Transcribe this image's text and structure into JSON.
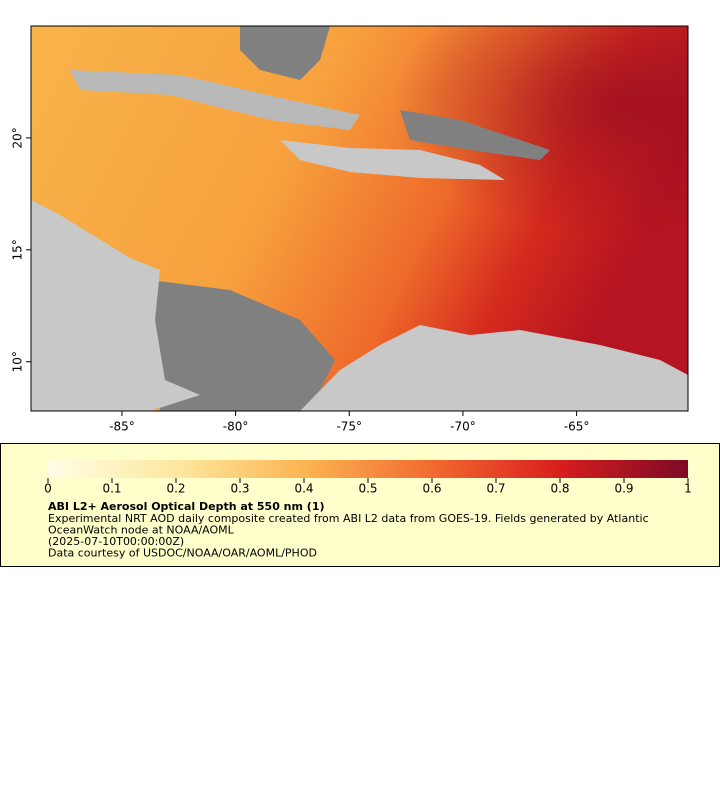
{
  "map": {
    "xlim": [
      -89,
      -60.1
    ],
    "ylim": [
      7.8,
      25
    ],
    "xticks": [
      {
        "value": -85,
        "label": "-85°"
      },
      {
        "value": -80,
        "label": "-80°"
      },
      {
        "value": -75,
        "label": "-75°"
      },
      {
        "value": -70,
        "label": "-70°"
      },
      {
        "value": -65,
        "label": "-65°"
      }
    ],
    "yticks": [
      {
        "value": 10,
        "label": "10°"
      },
      {
        "value": 15,
        "label": "15°"
      },
      {
        "value": 20,
        "label": "20°"
      }
    ]
  },
  "colorbar": {
    "range": [
      0,
      1
    ],
    "ticks": [
      0,
      0.1,
      0.2,
      0.3,
      0.4,
      0.5,
      0.6,
      0.7,
      0.8,
      0.9,
      1
    ]
  },
  "legend": {
    "title": "ABI L2+ Aerosol Optical Depth at 550 nm (1)",
    "lines": [
      "Experimental NRT AOD daily composite created from ABI L2 data from GOES-19. Fields generated by Atlantic",
      "OceanWatch node at NOAA/AOML",
      "(2025-07-10T00:00:00Z)",
      "Data courtesy of USDOC/NOAA/OAR/AOML/PHOD"
    ]
  }
}
